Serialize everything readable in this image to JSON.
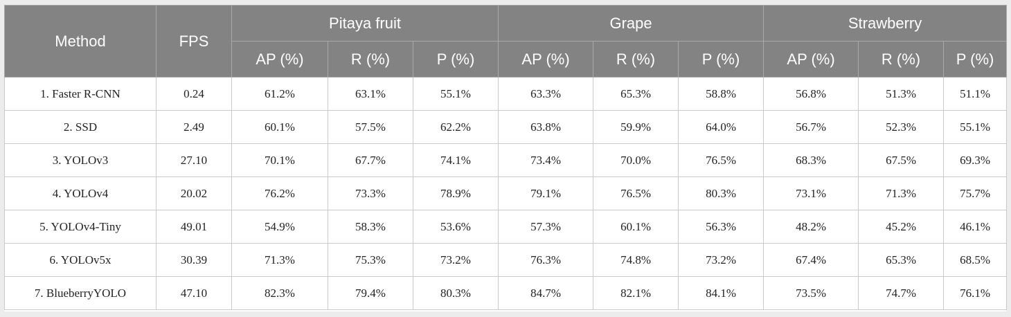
{
  "header": {
    "method": "Method",
    "fps": "FPS",
    "groups": [
      "Pitaya fruit",
      "Grape",
      "Strawberry"
    ],
    "metrics": [
      "AP (%)",
      "R (%)",
      "P (%)"
    ]
  },
  "rows": [
    {
      "method": "1. Faster R-CNN",
      "fps": "0.24",
      "values": [
        "61.2%",
        "63.1%",
        "55.1%",
        "63.3%",
        "65.3%",
        "58.8%",
        "56.8%",
        "51.3%",
        "51.1%"
      ]
    },
    {
      "method": "2. SSD",
      "fps": "2.49",
      "values": [
        "60.1%",
        "57.5%",
        "62.2%",
        "63.8%",
        "59.9%",
        "64.0%",
        "56.7%",
        "52.3%",
        "55.1%"
      ]
    },
    {
      "method": "3. YOLOv3",
      "fps": "27.10",
      "values": [
        "70.1%",
        "67.7%",
        "74.1%",
        "73.4%",
        "70.0%",
        "76.5%",
        "68.3%",
        "67.5%",
        "69.3%"
      ]
    },
    {
      "method": "4. YOLOv4",
      "fps": "20.02",
      "values": [
        "76.2%",
        "73.3%",
        "78.9%",
        "79.1%",
        "76.5%",
        "80.3%",
        "73.1%",
        "71.3%",
        "75.7%"
      ]
    },
    {
      "method": "5. YOLOv4-Tiny",
      "fps": "49.01",
      "values": [
        "54.9%",
        "58.3%",
        "53.6%",
        "57.3%",
        "60.1%",
        "56.3%",
        "48.2%",
        "45.2%",
        "46.1%"
      ]
    },
    {
      "method": "6. YOLOv5x",
      "fps": "30.39",
      "values": [
        "71.3%",
        "75.3%",
        "73.2%",
        "76.3%",
        "74.8%",
        "73.2%",
        "67.4%",
        "65.3%",
        "68.5%"
      ]
    },
    {
      "method": "7. BlueberryYOLO",
      "fps": "47.10",
      "values": [
        "82.3%",
        "79.4%",
        "80.3%",
        "84.7%",
        "82.1%",
        "84.1%",
        "73.5%",
        "74.7%",
        "76.1%"
      ]
    }
  ]
}
